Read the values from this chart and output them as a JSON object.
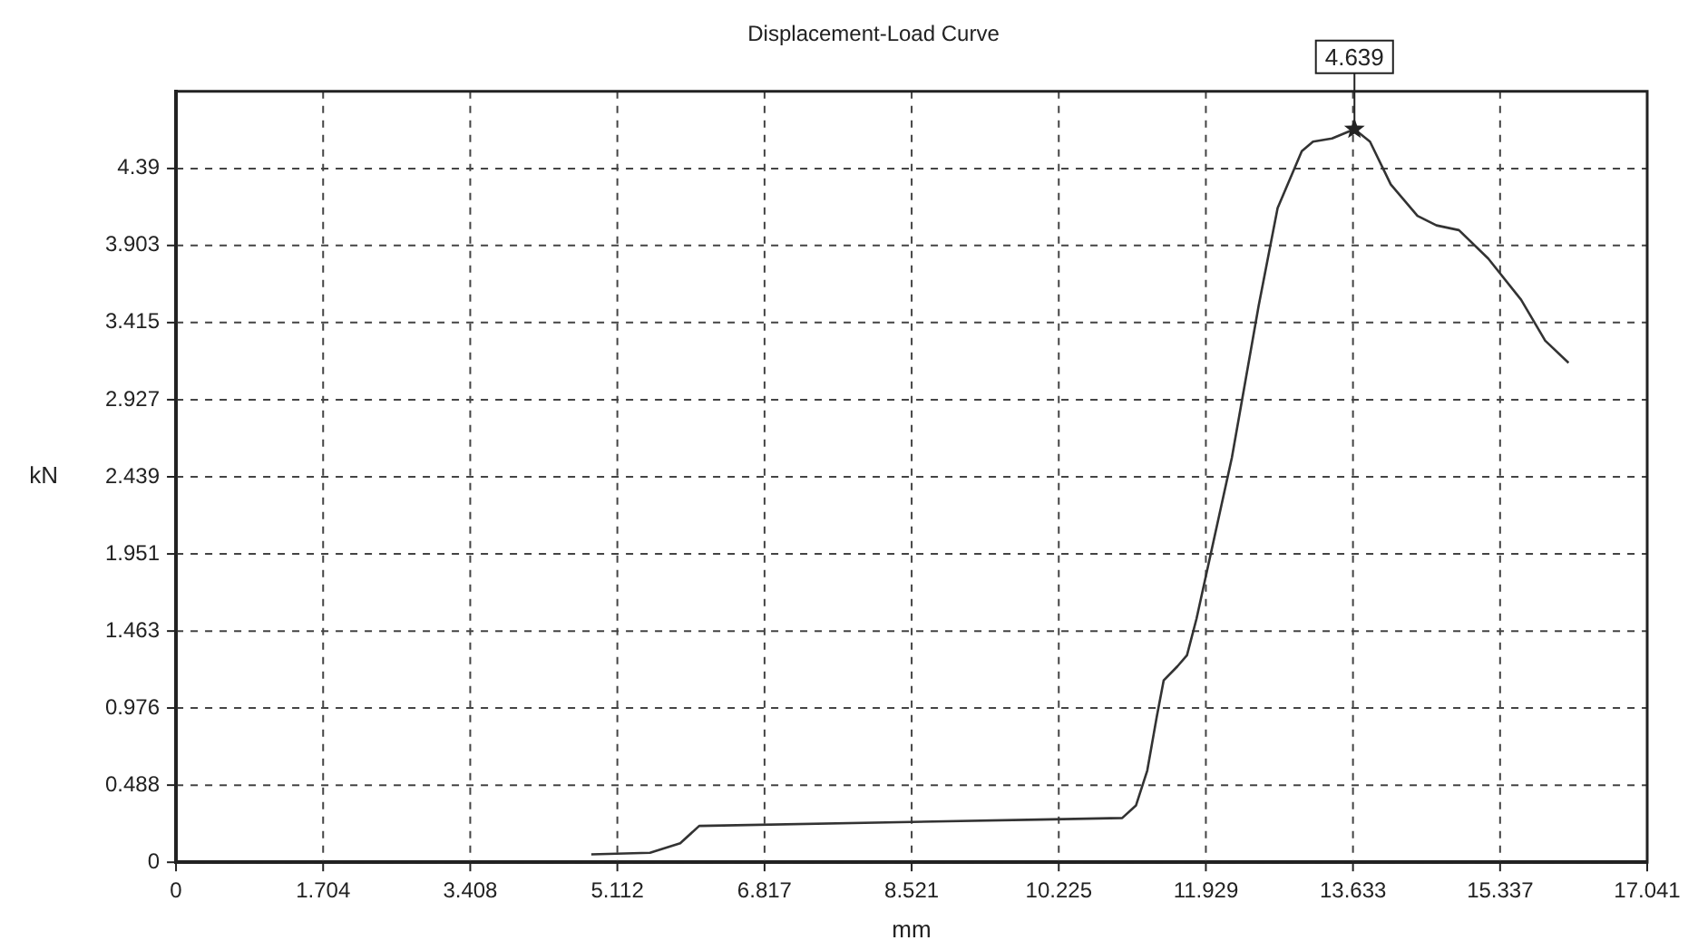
{
  "chart_data": {
    "type": "line",
    "title": "Displacement-Load Curve",
    "xlabel": "mm",
    "ylabel": "kN",
    "x": [
      4.81,
      5.49,
      5.84,
      6.06,
      10.0,
      10.96,
      11.12,
      11.25,
      11.36,
      11.44,
      11.6,
      11.71,
      11.82,
      12.23,
      12.54,
      12.76,
      13.04,
      13.17,
      13.39,
      13.65,
      13.83,
      14.07,
      14.38,
      14.6,
      14.86,
      15.2,
      15.58,
      15.86,
      16.13
    ],
    "series": [
      {
        "color": "#333333",
        "values": [
          0.05,
          0.06,
          0.12,
          0.23,
          0.27,
          0.28,
          0.36,
          0.58,
          0.92,
          1.15,
          1.24,
          1.31,
          1.54,
          2.56,
          3.52,
          4.14,
          4.5,
          4.56,
          4.58,
          4.639,
          4.56,
          4.29,
          4.09,
          4.03,
          4.0,
          3.82,
          3.56,
          3.3,
          3.16
        ]
      }
    ],
    "xlim": [
      0,
      17.041
    ],
    "xticks": [
      0,
      1.704,
      3.408,
      5.112,
      6.817,
      8.521,
      10.225,
      11.929,
      13.633,
      15.337,
      17.041
    ],
    "ylim": [
      0,
      4.878
    ],
    "yticks": [
      0,
      0.488,
      0.976,
      1.463,
      1.951,
      2.439,
      2.927,
      3.415,
      3.903,
      4.39
    ],
    "grid": true,
    "marker": "none",
    "line_style": "solid",
    "legend": false,
    "annotations": [
      {
        "text": "4.639",
        "x": 13.65,
        "y": 4.639
      }
    ]
  }
}
